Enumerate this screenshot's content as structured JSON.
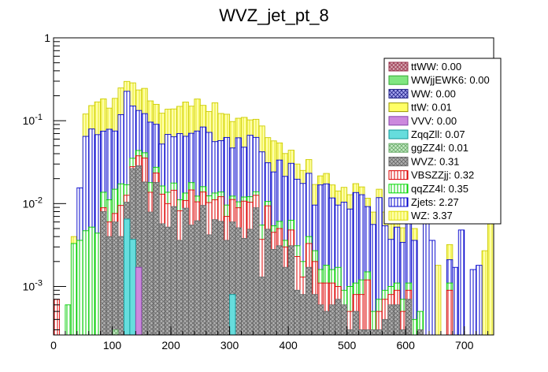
{
  "chart_data": {
    "type": "bar",
    "stacked": true,
    "title": "WVZ_jet_pt_8",
    "xlabel": "",
    "ylabel": "",
    "xlim": [
      0,
      750
    ],
    "ylim": [
      0.00026,
      1.0
    ],
    "yscale": "log",
    "bin_width": 10,
    "x_ticks": [
      "0",
      "100",
      "200",
      "300",
      "400",
      "500",
      "600",
      "700"
    ],
    "y_ticks": [
      {
        "value": 0.001,
        "base": "10",
        "exp": "-3"
      },
      {
        "value": 0.01,
        "base": "10",
        "exp": "-2"
      },
      {
        "value": 0.1,
        "base": "10",
        "exp": "-1"
      },
      {
        "value": 1,
        "base": "1",
        "exp": ""
      }
    ],
    "legend_position": "top-right",
    "legend": [
      {
        "label": "ttWW: 0.00",
        "fill": "#cc99a6",
        "stroke": "#99334d",
        "pattern": "cross"
      },
      {
        "label": "WWjjEWK6: 0.00",
        "fill": "#80e680",
        "stroke": "#33aa33",
        "pattern": "solid"
      },
      {
        "label": "WW: 0.00",
        "fill": "#9999ee",
        "stroke": "#222288",
        "pattern": "cross"
      },
      {
        "label": "ttW: 0.01",
        "fill": "#ffff66",
        "stroke": "#999900",
        "pattern": "solid"
      },
      {
        "label": "VVV: 0.00",
        "fill": "#cc88dd",
        "stroke": "#8844aa",
        "pattern": "solid"
      },
      {
        "label": "ZqqZll: 0.07",
        "fill": "#66dddd",
        "stroke": "#119999",
        "pattern": "solid"
      },
      {
        "label": "ggZZ4l: 0.01",
        "fill": "#aaddaa",
        "stroke": "#66aa66",
        "pattern": "cross"
      },
      {
        "label": "WVZ: 0.31",
        "fill": "#aaaaaa",
        "stroke": "#666666",
        "pattern": "cross"
      },
      {
        "label": "VBSZZjj: 0.32",
        "fill": "#ffffff",
        "stroke": "#dd0000",
        "pattern": "vertical"
      },
      {
        "label": "qqZZ4l: 0.35",
        "fill": "#ffffff",
        "stroke": "#00dd00",
        "pattern": "vertical"
      },
      {
        "label": "Zjets: 2.27",
        "fill": "#ffffff",
        "stroke": "#0000cc",
        "pattern": "vertical"
      },
      {
        "label": "WZ: 3.37",
        "fill": "#ffffaa",
        "stroke": "#dddd00",
        "pattern": "vertical"
      }
    ],
    "series": [
      {
        "name": "ttWW",
        "color": "#99334d",
        "values": [
          0,
          0,
          0,
          0,
          0,
          0,
          0,
          0,
          0,
          0,
          0,
          0,
          0,
          0,
          0,
          0,
          0,
          0,
          0,
          0,
          0,
          0,
          0,
          0,
          0,
          0,
          0,
          0,
          0,
          0,
          0,
          0,
          0,
          0,
          0,
          0,
          0,
          0,
          0,
          0,
          0,
          0,
          0,
          0,
          0,
          0,
          0,
          0,
          0,
          0,
          0,
          0,
          0,
          0,
          0,
          0,
          0,
          0,
          0,
          0,
          0,
          0,
          0,
          0,
          0,
          0,
          0,
          0,
          0,
          0,
          0,
          0,
          0,
          0,
          0
        ]
      },
      {
        "name": "WWjjEWK6",
        "color": "#33aa33",
        "values": [
          0,
          0,
          0,
          0,
          0,
          0,
          0,
          0,
          0,
          0,
          0,
          0,
          0,
          0,
          0,
          0,
          0,
          0,
          0,
          0,
          0,
          0,
          0,
          0,
          0,
          0,
          0,
          0,
          0,
          0,
          0,
          0,
          0,
          0,
          0,
          0,
          0,
          0,
          0,
          0,
          0,
          0,
          0,
          0,
          0,
          0,
          0,
          0,
          0,
          0,
          0,
          0,
          0,
          0,
          0,
          0,
          0,
          0,
          0,
          0,
          0,
          0,
          0,
          0,
          0,
          0,
          0,
          0,
          0,
          0,
          0,
          0,
          0,
          0,
          0
        ]
      },
      {
        "name": "WW",
        "color": "#222288",
        "values": [
          0,
          0,
          0,
          0,
          0,
          0,
          0,
          0,
          0,
          0,
          0,
          0,
          0,
          0,
          0,
          0,
          0,
          0,
          0,
          0,
          0,
          0,
          0,
          0,
          0,
          0,
          0,
          0,
          0,
          0,
          0,
          0,
          0,
          0,
          0,
          0,
          0,
          0,
          0,
          0,
          0,
          0,
          0,
          0,
          0,
          0,
          0,
          0,
          0,
          0,
          0,
          0,
          0,
          0,
          0,
          0,
          0,
          0,
          0,
          0,
          0,
          0,
          0,
          0,
          0,
          0,
          0,
          0,
          0,
          0,
          0,
          0,
          0,
          0,
          0
        ]
      },
      {
        "name": "ttW",
        "color": "#cccc00",
        "values": [
          0,
          0,
          0,
          0,
          0,
          0,
          0,
          0,
          0,
          0,
          0,
          0,
          0,
          0,
          0,
          0,
          0,
          0,
          0,
          0,
          0,
          0,
          0,
          0,
          0,
          0,
          0,
          0,
          0,
          0,
          0,
          0,
          0,
          0,
          0,
          0,
          0,
          0,
          0,
          0,
          0,
          0,
          0,
          0,
          0,
          0,
          0,
          0,
          0,
          0,
          0,
          0,
          0,
          0,
          0,
          0,
          0,
          0,
          0,
          0,
          0,
          0,
          0,
          0,
          0,
          0,
          0,
          0,
          0,
          0,
          0,
          0,
          0,
          0,
          0
        ]
      },
      {
        "name": "VVV",
        "color": "#8844aa",
        "values": [
          0,
          0,
          0,
          0,
          0,
          0,
          0,
          0,
          0,
          0,
          0,
          0,
          0,
          0,
          0.0017,
          0,
          0,
          0,
          0,
          0,
          0,
          0,
          0,
          0,
          0,
          0,
          0,
          0,
          0,
          0,
          0,
          0,
          0,
          0,
          0,
          0,
          0,
          0,
          0,
          0,
          0,
          0,
          0,
          0,
          0,
          0,
          0,
          0,
          0,
          0,
          0,
          0,
          0,
          0,
          0,
          0,
          0,
          0,
          0,
          0,
          0,
          0,
          0,
          0,
          0,
          0,
          0,
          0,
          0,
          0,
          0,
          0,
          0,
          0,
          0
        ]
      },
      {
        "name": "ZqqZll",
        "color": "#119999",
        "values": [
          0,
          0,
          0,
          0,
          0,
          0,
          0,
          0,
          0,
          0,
          0,
          0,
          0.0065,
          0.0037,
          0,
          0,
          0,
          0,
          0,
          0,
          0,
          0,
          0,
          0,
          0,
          0,
          0,
          0,
          0,
          0,
          0.0008,
          0,
          0,
          0,
          0,
          0,
          0,
          0,
          0,
          0,
          0,
          0,
          0,
          0,
          0,
          0,
          0,
          0,
          0,
          0,
          0,
          0,
          0,
          0,
          0,
          0,
          0,
          0,
          0,
          0,
          0,
          0,
          0,
          0,
          0,
          0,
          0,
          0,
          0,
          0,
          0,
          0,
          0,
          0,
          0
        ]
      },
      {
        "name": "ggZZ4l",
        "color": "#66aa66",
        "values": [
          0,
          0,
          0,
          0,
          0,
          0,
          0,
          0,
          0,
          0,
          0.0003,
          0,
          0,
          0,
          0,
          0,
          0,
          0,
          0,
          0,
          0,
          0,
          0,
          0,
          0,
          0,
          0,
          0,
          0,
          0,
          0,
          0,
          0,
          0,
          0,
          0,
          0,
          0,
          0,
          0,
          0,
          0,
          0,
          0,
          0,
          0,
          0,
          0,
          0,
          0,
          0,
          0,
          0,
          0,
          0,
          0,
          0,
          0,
          0,
          0,
          0,
          0,
          0,
          0,
          0,
          0,
          0,
          0,
          0,
          0,
          0,
          0,
          0,
          0,
          0
        ]
      },
      {
        "name": "WVZ",
        "color": "#666666",
        "values": [
          0,
          0,
          0,
          0,
          0,
          0,
          0,
          0,
          0.008,
          0.004,
          0.0057,
          0.004,
          0.0039,
          0.0227,
          0.0269,
          0.0182,
          0.0079,
          0.018,
          0.0057,
          0.0052,
          0.0092,
          0.0036,
          0.0088,
          0.0055,
          0.0062,
          0.0095,
          0.0042,
          0.0064,
          0.0061,
          0.0036,
          0.0052,
          0.0051,
          0.0038,
          0.0049,
          0.0089,
          0.0013,
          0.0049,
          0.0028,
          0.0031,
          0.0017,
          0.0031,
          0.0009,
          0.0008,
          0.0017,
          0.0008,
          0.0006,
          0.0005,
          0.0006,
          0.0007,
          0.0006,
          0.0003,
          0.0005,
          0.0003,
          0.0003,
          0.0003,
          0.0003,
          0.0004,
          0.0006,
          0.0006,
          0.0003,
          0.0007,
          0,
          0.0003,
          0,
          0,
          0,
          0,
          0,
          0,
          0,
          0,
          0,
          0,
          0,
          0
        ]
      },
      {
        "name": "VBSZZjj",
        "color": "#dd0000",
        "values": [
          0.0007,
          0,
          0,
          0,
          0,
          0,
          0,
          0,
          0.0009,
          0.002,
          0.0016,
          0.0055,
          0.0022,
          0.0015,
          0.0091,
          0.0172,
          0.0058,
          0.0054,
          0.0073,
          0.0048,
          0.0053,
          0.0046,
          0.0021,
          0.0091,
          0.0043,
          0.0043,
          0.0061,
          0.0047,
          0.006,
          0.0034,
          0.0052,
          0.0038,
          0.0069,
          0.0055,
          0.0037,
          0.0024,
          0.0045,
          0.0017,
          0.0019,
          0.0013,
          0.0017,
          0.0014,
          0.0005,
          0.0016,
          0.0012,
          0.0005,
          0.0006,
          0.0005,
          0.0003,
          0,
          0.0002,
          0.0003,
          0.0005,
          0.0009,
          0,
          0.0002,
          0.0003,
          0.0002,
          0.0003,
          0.0002,
          0.0002,
          0.0002,
          0,
          0,
          0,
          0,
          0,
          0.0009,
          0,
          0,
          0,
          0,
          0,
          0,
          0
        ]
      },
      {
        "name": "qqZZ4l",
        "color": "#00cc00",
        "values": [
          0,
          0,
          0.0006,
          0.0033,
          0.0036,
          0.0047,
          0.0052,
          0.0044,
          0.0048,
          0.0051,
          0.0073,
          0.0078,
          0.0043,
          0.0073,
          0.006,
          0.0056,
          0.0042,
          0.004,
          0.0033,
          0.0037,
          0.0032,
          0.0029,
          0.0025,
          0.0033,
          0.0018,
          0.0022,
          0.0021,
          0.0023,
          0.0017,
          0.0026,
          0.0011,
          0.0016,
          0.0013,
          0.0017,
          0.0013,
          0.0018,
          0.0012,
          0.0009,
          0.0011,
          0.0006,
          0.0015,
          0.0008,
          0.0007,
          0.0007,
          0.0007,
          0.0005,
          0.0007,
          0.0005,
          0.0007,
          0.0003,
          0.0005,
          0.0003,
          0.0004,
          0.0003,
          0.0002,
          0.0002,
          0.0002,
          0.0002,
          0.0002,
          0.0002,
          0.0002,
          0.0002,
          0.0002,
          0.0002,
          0.0002,
          0.0002,
          0.0002,
          0.0002,
          0,
          0,
          0,
          0,
          0,
          0,
          0
        ]
      },
      {
        "name": "Zjets",
        "color": "#0000cc",
        "values": [
          0,
          0,
          0,
          0,
          0.0119,
          0.06,
          0.0743,
          0.0635,
          0.0612,
          0.0678,
          0.0602,
          0.1009,
          0.2095,
          0.1154,
          0.0892,
          0.0808,
          0.0782,
          0.0631,
          0.036,
          0.0546,
          0.0462,
          0.0588,
          0.0515,
          0.0526,
          0.0628,
          0.068,
          0.0599,
          0.0425,
          0.0436,
          0.0532,
          0.0346,
          0.0517,
          0.0359,
          0.0546,
          0.049,
          0.0366,
          0.0205,
          0.0187,
          0.0274,
          0.0177,
          0.0243,
          0.0166,
          0.0155,
          0.0192,
          0.0069,
          0.0152,
          0.0155,
          0.0101,
          0.0079,
          0.0095,
          0.0076,
          0.0125,
          0.0116,
          0.0077,
          0.0051,
          0.0111,
          0.0045,
          0.0027,
          0.0041,
          0.0027,
          0.0048,
          0.0032,
          0,
          0.0057,
          0.0034,
          0,
          0,
          0.001,
          0.0017,
          0.0048,
          0,
          0.0016,
          0.0018,
          0,
          0
        ]
      },
      {
        "name": "WZ",
        "color": "#cccc00",
        "values": [
          0,
          0,
          0,
          0.0007,
          0,
          0.0558,
          0.0727,
          0.1007,
          0.1083,
          0.063,
          0.1109,
          0.1303,
          0.0715,
          0.1356,
          0.1021,
          0.1237,
          0.0773,
          0.0671,
          0.0709,
          0.0693,
          0.0748,
          0.0791,
          0.1031,
          0.0794,
          0.1075,
          0.0692,
          0.0566,
          0.1086,
          0.0648,
          0.0569,
          0.0508,
          0.0449,
          0.0617,
          0.0356,
          0.0411,
          0.0443,
          0.0314,
          0.033,
          0.0205,
          0.0189,
          0.0135,
          0.0103,
          0.0076,
          0.0108,
          0.0074,
          0.0048,
          0.0058,
          0.0051,
          0.0046,
          0.0053,
          0.0042,
          0.0038,
          0.0031,
          0.0024,
          0.0023,
          0.0031,
          0.0025,
          0.003,
          0.0022,
          0.0017,
          0.0019,
          0.0014,
          0,
          0.0017,
          0,
          0.0016,
          0,
          0.0011,
          0,
          0,
          0,
          0,
          0,
          0.0027,
          0.0113
        ]
      }
    ]
  }
}
